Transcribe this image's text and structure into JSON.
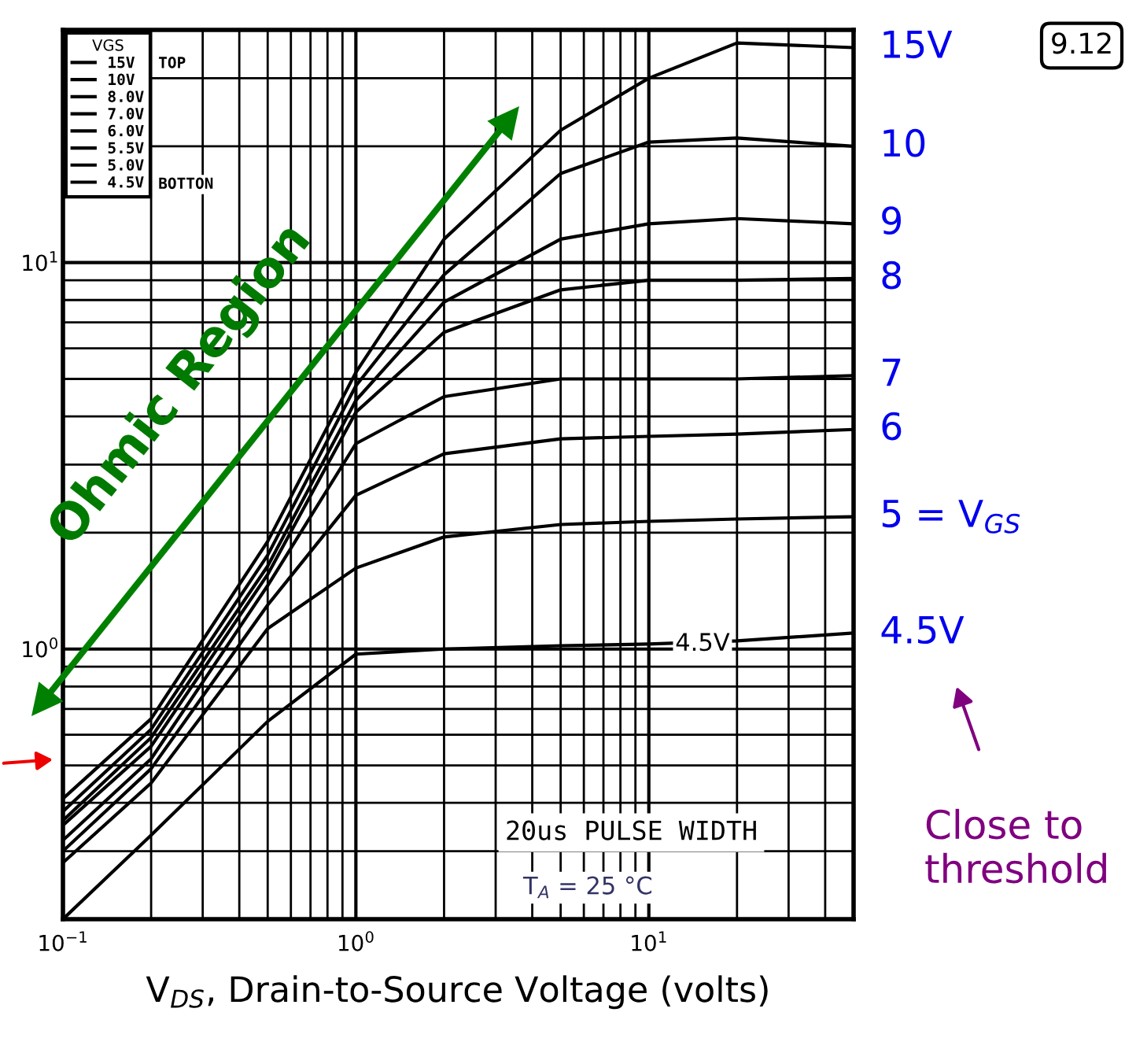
{
  "chart_data": {
    "type": "line",
    "log": "xy",
    "xlabel": "V$_{DS}$, Drain-to-Source Voltage (volts)",
    "legend_title": "VGS",
    "legend": "top left",
    "grid": true,
    "marker": "none",
    "line_style": "solid",
    "xlim": [
      0.1,
      50
    ],
    "ylim": [
      0.2,
      40
    ],
    "xticks": [
      {
        "value": 0.1,
        "label": "10$^{−1}$"
      },
      {
        "value": 1,
        "label": "10$^{0}$"
      },
      {
        "value": 10,
        "label": "10$^{1}$"
      }
    ],
    "yticks": [
      {
        "value": 1,
        "label": "10$^{0}$"
      },
      {
        "value": 10,
        "label": "10$^{1}$"
      }
    ],
    "x": [
      0.1,
      0.2,
      0.5,
      1,
      2,
      5,
      10,
      20,
      50
    ],
    "series": [
      {
        "name": "15V",
        "color": "#000000",
        "values": [
          0.41,
          0.66,
          1.9,
          5.2,
          11.5,
          22,
          30,
          37,
          36
        ]
      },
      {
        "name": "10V",
        "color": "#000000",
        "values": [
          0.38,
          0.62,
          1.75,
          4.8,
          9.3,
          17,
          20.5,
          21,
          20
        ]
      },
      {
        "name": "8.0V",
        "color": "#000000",
        "values": [
          0.36,
          0.59,
          1.64,
          4.4,
          7.9,
          11.5,
          12.6,
          13,
          12.6
        ]
      },
      {
        "name": "7.0V",
        "color": "#000000",
        "values": [
          0.35,
          0.56,
          1.56,
          4.1,
          6.6,
          8.5,
          9.0,
          9.0,
          9.1
        ]
      },
      {
        "name": "6.0V",
        "color": "#000000",
        "values": [
          0.32,
          0.52,
          1.46,
          3.4,
          4.5,
          5.0,
          5.0,
          5.0,
          5.1
        ]
      },
      {
        "name": "5.5V",
        "color": "#000000",
        "values": [
          0.3,
          0.49,
          1.3,
          2.5,
          3.2,
          3.5,
          3.55,
          3.6,
          3.7
        ]
      },
      {
        "name": "5.0V",
        "color": "#000000",
        "values": [
          0.28,
          0.45,
          1.13,
          1.62,
          1.95,
          2.1,
          2.14,
          2.17,
          2.2
        ]
      },
      {
        "name": "4.5V",
        "color": "#000000",
        "values": [
          0.2,
          0.33,
          0.65,
          0.97,
          1.0,
          1.02,
          1.03,
          1.05,
          1.1
        ]
      }
    ],
    "annotations": [
      "15V",
      "10",
      "9",
      "8",
      "7",
      "6",
      "5 = V$_{GS}$",
      "4.5V",
      {
        "text": "4.5V",
        "x": 12.3,
        "y": 1.03
      },
      "20us PULSE WIDTH",
      "T$_{A}$ = 25 °C",
      "Ohmic Region",
      "Close to threshold",
      "9.12",
      "TOP",
      "BOTTON"
    ]
  }
}
